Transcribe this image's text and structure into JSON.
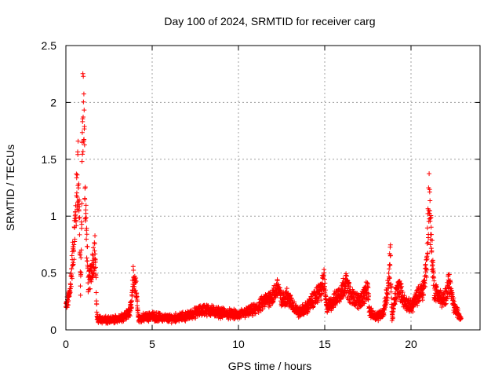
{
  "chart_data": {
    "type": "scatter",
    "title": "Day 100 of 2024, SRMTID for receiver carg",
    "xlabel": "GPS time / hours",
    "ylabel": "SRMTID / TECUs",
    "xlim": [
      0,
      24
    ],
    "ylim": [
      0,
      2.5
    ],
    "xticks": [
      0,
      5,
      10,
      15,
      20
    ],
    "yticks": [
      0,
      0.5,
      1,
      1.5,
      2,
      2.5
    ],
    "xtick_labels": [
      "0",
      "5",
      "10",
      "15",
      "20"
    ],
    "ytick_labels": [
      "0",
      "0.5",
      "1",
      "1.5",
      "2",
      "2.5"
    ],
    "grid": true,
    "marker": "+",
    "marker_color": "#ff0000",
    "series": [
      {
        "name": "SRMTID",
        "profile": [
          [
            0.0,
            0.2
          ],
          [
            0.2,
            0.3
          ],
          [
            0.35,
            0.55
          ],
          [
            0.5,
            0.85
          ],
          [
            0.6,
            1.1
          ],
          [
            0.7,
            1.45
          ],
          [
            0.8,
            0.9
          ],
          [
            0.85,
            0.3
          ],
          [
            0.9,
            0.8
          ],
          [
            0.95,
            1.6
          ],
          [
            1.0,
            2.05
          ],
          [
            1.05,
            1.8
          ],
          [
            1.1,
            1.3
          ],
          [
            1.2,
            0.8
          ],
          [
            1.3,
            0.4
          ],
          [
            1.4,
            0.45
          ],
          [
            1.55,
            0.6
          ],
          [
            1.7,
            0.7
          ],
          [
            1.8,
            0.1
          ],
          [
            2.5,
            0.08
          ],
          [
            3.0,
            0.1
          ],
          [
            3.5,
            0.13
          ],
          [
            3.8,
            0.2
          ],
          [
            3.9,
            0.46
          ],
          [
            4.05,
            0.4
          ],
          [
            4.2,
            0.1
          ],
          [
            5.0,
            0.12
          ],
          [
            6.0,
            0.1
          ],
          [
            7.0,
            0.12
          ],
          [
            8.0,
            0.18
          ],
          [
            9.0,
            0.15
          ],
          [
            10.0,
            0.13
          ],
          [
            11.0,
            0.18
          ],
          [
            11.5,
            0.25
          ],
          [
            12.0,
            0.3
          ],
          [
            12.3,
            0.38
          ],
          [
            12.5,
            0.25
          ],
          [
            12.8,
            0.3
          ],
          [
            13.0,
            0.25
          ],
          [
            13.5,
            0.15
          ],
          [
            14.0,
            0.2
          ],
          [
            14.5,
            0.3
          ],
          [
            14.8,
            0.35
          ],
          [
            14.95,
            0.45
          ],
          [
            15.1,
            0.2
          ],
          [
            15.5,
            0.25
          ],
          [
            16.0,
            0.35
          ],
          [
            16.2,
            0.42
          ],
          [
            16.5,
            0.3
          ],
          [
            17.0,
            0.25
          ],
          [
            17.5,
            0.35
          ],
          [
            17.6,
            0.15
          ],
          [
            18.0,
            0.12
          ],
          [
            18.4,
            0.15
          ],
          [
            18.7,
            0.4
          ],
          [
            18.8,
            0.66
          ],
          [
            18.9,
            0.1
          ],
          [
            19.1,
            0.3
          ],
          [
            19.3,
            0.38
          ],
          [
            19.6,
            0.25
          ],
          [
            20.0,
            0.2
          ],
          [
            20.4,
            0.3
          ],
          [
            20.7,
            0.35
          ],
          [
            20.9,
            0.55
          ],
          [
            21.05,
            1.2
          ],
          [
            21.2,
            0.7
          ],
          [
            21.35,
            0.35
          ],
          [
            21.6,
            0.3
          ],
          [
            21.9,
            0.25
          ],
          [
            22.1,
            0.35
          ],
          [
            22.2,
            0.45
          ],
          [
            22.35,
            0.3
          ],
          [
            22.5,
            0.2
          ],
          [
            22.7,
            0.15
          ],
          [
            22.9,
            0.1
          ]
        ]
      }
    ]
  }
}
